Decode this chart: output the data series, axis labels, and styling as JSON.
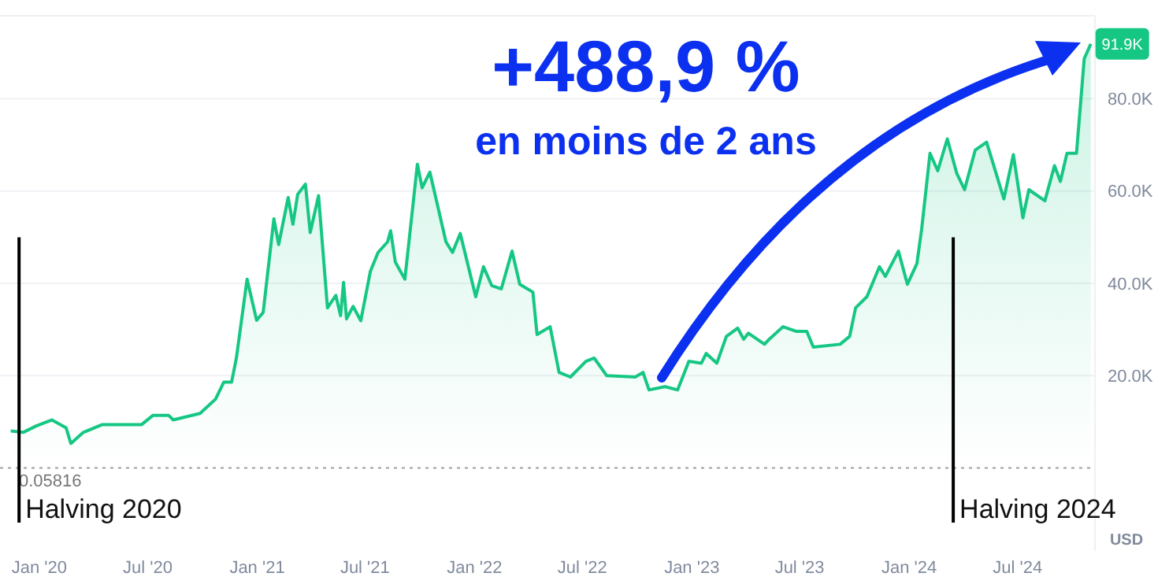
{
  "chart_data": {
    "type": "area",
    "title": "+488,9 %",
    "subtitle": "en moins de 2 ans",
    "ylabel": "USD",
    "x": [
      "2019-11-14",
      "2019-12-05",
      "2019-12-27",
      "2020-01-22",
      "2020-02-15",
      "2020-02-23",
      "2020-03-15",
      "2020-04-16",
      "2020-06-21",
      "2020-07-10",
      "2020-08-05",
      "2020-08-13",
      "2020-09-27",
      "2020-10-23",
      "2020-11-06",
      "2020-11-19",
      "2020-11-27",
      "2020-12-15",
      "2020-12-31",
      "2021-01-11",
      "2021-01-29",
      "2021-02-06",
      "2021-02-22",
      "2021-03-02",
      "2021-03-10",
      "2021-03-23",
      "2021-03-31",
      "2021-04-14",
      "2021-04-29",
      "2021-05-13",
      "2021-05-21",
      "2021-05-26",
      "2021-05-31",
      "2021-06-11",
      "2021-06-24",
      "2021-07-10",
      "2021-07-23",
      "2021-08-08",
      "2021-08-13",
      "2021-08-21",
      "2021-09-06",
      "2021-09-27",
      "2021-10-05",
      "2021-10-18",
      "2021-11-14",
      "2021-11-25",
      "2021-12-08",
      "2022-01-03",
      "2022-01-16",
      "2022-01-30",
      "2022-02-15",
      "2022-03-05",
      "2022-03-18",
      "2022-04-09",
      "2022-04-16",
      "2022-05-08",
      "2022-05-23",
      "2022-06-11",
      "2022-07-07",
      "2022-07-21",
      "2022-08-11",
      "2022-09-28",
      "2022-10-11",
      "2022-10-21",
      "2022-11-17",
      "2022-12-08",
      "2022-12-27",
      "2023-01-17",
      "2023-01-25",
      "2023-02-12",
      "2023-02-28",
      "2023-03-19",
      "2023-03-29",
      "2023-04-06",
      "2023-05-03",
      "2023-05-11",
      "2023-06-03",
      "2023-06-25",
      "2023-07-13",
      "2023-07-24",
      "2023-09-07",
      "2023-09-23",
      "2023-10-03",
      "2023-10-22",
      "2023-11-12",
      "2023-11-22",
      "2023-12-14",
      "2023-12-29",
      "2024-01-14",
      "2024-01-22",
      "2024-02-05",
      "2024-02-18",
      "2024-03-05",
      "2024-03-21",
      "2024-04-03",
      "2024-04-21",
      "2024-05-10",
      "2024-06-08",
      "2024-06-24",
      "2024-07-10",
      "2024-07-20",
      "2024-08-16",
      "2024-09-01",
      "2024-09-11",
      "2024-09-22",
      "2024-10-08",
      "2024-10-21",
      "2024-11-01"
    ],
    "values": [
      8000,
      7700,
      9100,
      10400,
      8700,
      5300,
      7700,
      9400,
      9400,
      11400,
      11400,
      10400,
      11800,
      14900,
      18600,
      18600,
      23800,
      40900,
      32000,
      33700,
      54000,
      48400,
      58600,
      52800,
      59300,
      61500,
      51000,
      59000,
      34700,
      37400,
      33000,
      40200,
      32300,
      35000,
      31900,
      42600,
      46700,
      49000,
      51400,
      44600,
      40900,
      65800,
      60700,
      64100,
      49000,
      46700,
      50800,
      37100,
      43600,
      39500,
      38800,
      47000,
      39800,
      38100,
      28900,
      30600,
      20700,
      19700,
      23100,
      23800,
      20000,
      19700,
      20700,
      16900,
      17600,
      16900,
      23100,
      22700,
      24800,
      22700,
      28500,
      30300,
      27900,
      29200,
      26800,
      27900,
      30600,
      29600,
      29600,
      26200,
      26800,
      28500,
      34700,
      37100,
      43600,
      41500,
      47000,
      39800,
      44300,
      51800,
      68200,
      64400,
      71300,
      63800,
      60300,
      68900,
      70600,
      58300,
      67900,
      54200,
      60300,
      57900,
      65500,
      62100,
      68200,
      68200,
      88700,
      91900
    ],
    "color": "#16c784",
    "xlim": [
      "2019-10-27",
      "2024-11-08"
    ],
    "xticks": [
      {
        "value": "2020-01-01",
        "label": "Jan '20"
      },
      {
        "value": "2020-07-01",
        "label": "Jul '20"
      },
      {
        "value": "2021-01-01",
        "label": "Jan '21"
      },
      {
        "value": "2021-07-01",
        "label": "Jul '21"
      },
      {
        "value": "2022-01-01",
        "label": "Jan '22"
      },
      {
        "value": "2022-07-01",
        "label": "Jul '22"
      },
      {
        "value": "2023-01-01",
        "label": "Jan '23"
      },
      {
        "value": "2023-07-01",
        "label": "Jul '23"
      },
      {
        "value": "2024-01-01",
        "label": "Jan '24"
      },
      {
        "value": "2024-07-01",
        "label": "Jul '24"
      }
    ],
    "ylim": [
      -18000,
      98000
    ],
    "yticks": [
      {
        "value": 20000,
        "label": "20.0K"
      },
      {
        "value": 40000,
        "label": "40.0K"
      },
      {
        "value": 60000,
        "label": "60.0K"
      },
      {
        "value": 80000,
        "label": "80.0K"
      }
    ],
    "grid": "y",
    "ref_lines": [
      {
        "axis": "y",
        "value": 0.05816,
        "label": "0.05816",
        "color": "#a0a0a0",
        "line_style": "dotted"
      },
      {
        "axis": "x",
        "value": "2019-11-28",
        "label": "Halving 2020",
        "color": "#000000",
        "line_style": "solid"
      },
      {
        "axis": "x",
        "value": "2024-03-15",
        "label": "Halving 2024",
        "color": "#000000",
        "line_style": "solid"
      }
    ],
    "annotations": [
      {
        "text": "91.9K",
        "x": "2024-11-01",
        "y": 91900
      }
    ]
  }
}
